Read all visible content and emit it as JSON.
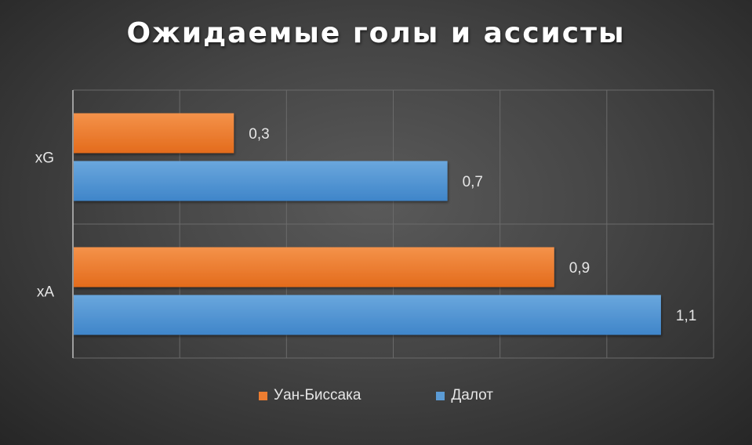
{
  "chart_data": {
    "type": "bar",
    "orientation": "horizontal",
    "title": "Ожидаемые голы и ассисты",
    "categories": [
      "xG",
      "xA"
    ],
    "series": [
      {
        "name": "Уан-Биссака",
        "values": [
          0.3,
          0.9
        ],
        "labels": [
          "0,3",
          "0,9"
        ],
        "color": "#ED7D31"
      },
      {
        "name": "Далот",
        "values": [
          0.7,
          1.1
        ],
        "labels": [
          "0,7",
          "1,1"
        ],
        "color": "#5B9BD5"
      }
    ],
    "xlim": [
      0,
      1.2
    ],
    "grid": true,
    "legend_position": "bottom"
  }
}
